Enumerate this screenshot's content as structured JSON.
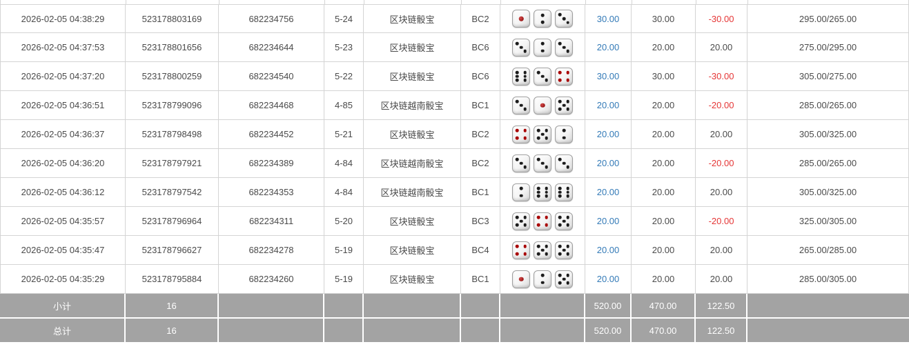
{
  "colors": {
    "link_blue": "#337ab7",
    "negative_red": "#e53535",
    "summary_bg": "#a3a3a3",
    "grid_border": "#d4d4d4",
    "text": "#4a4a4a"
  },
  "table": {
    "rows": [
      {
        "time": "2026-02-05 04:38:29",
        "bet_id": "523178803169",
        "round_id": "682234756",
        "period": "5-24",
        "game": "区块链骰宝",
        "table_code": "BC2",
        "dice": [
          1,
          2,
          3
        ],
        "bet": "30.00",
        "valid": "30.00",
        "winloss": "-30.00",
        "balance": "295.00/265.00"
      },
      {
        "time": "2026-02-05 04:37:53",
        "bet_id": "523178801656",
        "round_id": "682234644",
        "period": "5-23",
        "game": "区块链骰宝",
        "table_code": "BC6",
        "dice": [
          3,
          2,
          3
        ],
        "bet": "20.00",
        "valid": "20.00",
        "winloss": "20.00",
        "balance": "275.00/295.00"
      },
      {
        "time": "2026-02-05 04:37:20",
        "bet_id": "523178800259",
        "round_id": "682234540",
        "period": "5-22",
        "game": "区块链骰宝",
        "table_code": "BC6",
        "dice": [
          6,
          3,
          4
        ],
        "bet": "30.00",
        "valid": "30.00",
        "winloss": "-30.00",
        "balance": "305.00/275.00"
      },
      {
        "time": "2026-02-05 04:36:51",
        "bet_id": "523178799096",
        "round_id": "682234468",
        "period": "4-85",
        "game": "区块链越南骰宝",
        "table_code": "BC1",
        "dice": [
          3,
          1,
          5
        ],
        "bet": "20.00",
        "valid": "20.00",
        "winloss": "-20.00",
        "balance": "285.00/265.00"
      },
      {
        "time": "2026-02-05 04:36:37",
        "bet_id": "523178798498",
        "round_id": "682234452",
        "period": "5-21",
        "game": "区块链骰宝",
        "table_code": "BC2",
        "dice": [
          4,
          5,
          2
        ],
        "bet": "20.00",
        "valid": "20.00",
        "winloss": "20.00",
        "balance": "305.00/325.00"
      },
      {
        "time": "2026-02-05 04:36:20",
        "bet_id": "523178797921",
        "round_id": "682234389",
        "period": "4-84",
        "game": "区块链越南骰宝",
        "table_code": "BC2",
        "dice": [
          3,
          3,
          3
        ],
        "bet": "20.00",
        "valid": "20.00",
        "winloss": "-20.00",
        "balance": "285.00/265.00"
      },
      {
        "time": "2026-02-05 04:36:12",
        "bet_id": "523178797542",
        "round_id": "682234353",
        "period": "4-84",
        "game": "区块链越南骰宝",
        "table_code": "BC1",
        "dice": [
          2,
          6,
          6
        ],
        "bet": "20.00",
        "valid": "20.00",
        "winloss": "20.00",
        "balance": "305.00/325.00"
      },
      {
        "time": "2026-02-05 04:35:57",
        "bet_id": "523178796964",
        "round_id": "682234311",
        "period": "5-20",
        "game": "区块链骰宝",
        "table_code": "BC3",
        "dice": [
          5,
          4,
          5
        ],
        "bet": "20.00",
        "valid": "20.00",
        "winloss": "-20.00",
        "balance": "325.00/305.00"
      },
      {
        "time": "2026-02-05 04:35:47",
        "bet_id": "523178796627",
        "round_id": "682234278",
        "period": "5-19",
        "game": "区块链骰宝",
        "table_code": "BC4",
        "dice": [
          4,
          5,
          5
        ],
        "bet": "20.00",
        "valid": "20.00",
        "winloss": "20.00",
        "balance": "265.00/285.00"
      },
      {
        "time": "2026-02-05 04:35:29",
        "bet_id": "523178795884",
        "round_id": "682234260",
        "period": "5-19",
        "game": "区块链骰宝",
        "table_code": "BC1",
        "dice": [
          1,
          2,
          5
        ],
        "bet": "20.00",
        "valid": "20.00",
        "winloss": "20.00",
        "balance": "285.00/305.00"
      }
    ],
    "summary_rows": [
      {
        "label": "小计",
        "count": "16",
        "bet_total": "520.00",
        "valid_total": "470.00",
        "winloss_total": "122.50"
      },
      {
        "label": "总计",
        "count": "16",
        "bet_total": "520.00",
        "valid_total": "470.00",
        "winloss_total": "122.50"
      }
    ]
  }
}
